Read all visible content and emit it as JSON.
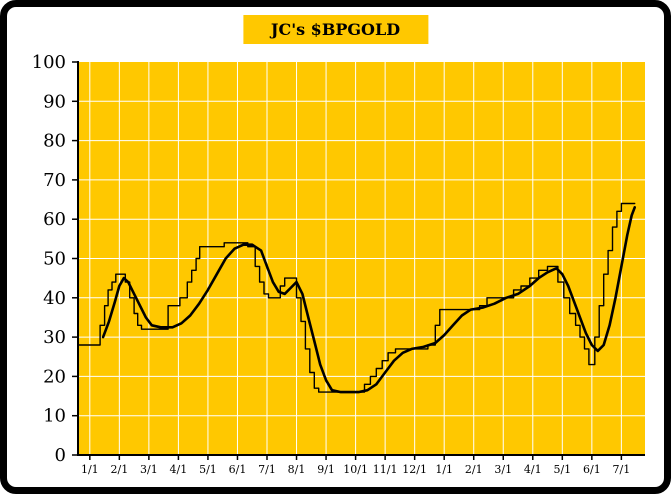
{
  "title": "JC's $BPGOLD",
  "colors": {
    "plot_bg": "#FFC800",
    "title_bg": "#FFC800",
    "grid": "#FFFFFF",
    "line": "#000000",
    "axis": "#000000",
    "frame": "#000000",
    "page_bg": "#FFFFFF"
  },
  "chart_data": {
    "type": "line",
    "title": "JC's $BPGOLD",
    "xlabel": "",
    "ylabel": "",
    "x_labels": [
      "1/1",
      "2/1",
      "3/1",
      "4/1",
      "5/1",
      "6/1",
      "7/1",
      "8/1",
      "9/1",
      "10/1",
      "11/1",
      "12/1",
      "1/1",
      "2/1",
      "3/1",
      "4/1",
      "5/1",
      "6/1",
      "7/1"
    ],
    "y_ticks": [
      0,
      10,
      20,
      30,
      40,
      50,
      60,
      70,
      80,
      90,
      100
    ],
    "ylim": [
      0,
      100
    ],
    "x_domain": [
      -0.4,
      18.8
    ],
    "grid": true,
    "legend_position": "none",
    "series": [
      {
        "name": "stepped-line",
        "style": "step",
        "width": 1.4,
        "points": [
          [
            -0.35,
            28
          ],
          [
            0.35,
            28
          ],
          [
            0.35,
            33
          ],
          [
            0.5,
            33
          ],
          [
            0.5,
            38
          ],
          [
            0.62,
            38
          ],
          [
            0.62,
            42
          ],
          [
            0.75,
            42
          ],
          [
            0.75,
            44
          ],
          [
            0.88,
            44
          ],
          [
            0.88,
            46
          ],
          [
            1.2,
            46
          ],
          [
            1.2,
            44
          ],
          [
            1.35,
            44
          ],
          [
            1.35,
            40
          ],
          [
            1.5,
            40
          ],
          [
            1.5,
            36
          ],
          [
            1.62,
            36
          ],
          [
            1.62,
            33
          ],
          [
            1.75,
            33
          ],
          [
            1.75,
            32
          ],
          [
            2.65,
            32
          ],
          [
            2.65,
            38
          ],
          [
            3.05,
            38
          ],
          [
            3.05,
            40
          ],
          [
            3.3,
            40
          ],
          [
            3.3,
            44
          ],
          [
            3.45,
            44
          ],
          [
            3.45,
            47
          ],
          [
            3.6,
            47
          ],
          [
            3.6,
            50
          ],
          [
            3.72,
            50
          ],
          [
            3.72,
            53
          ],
          [
            4.55,
            53
          ],
          [
            4.55,
            54
          ],
          [
            5.35,
            54
          ],
          [
            5.35,
            53
          ],
          [
            5.6,
            53
          ],
          [
            5.6,
            48
          ],
          [
            5.75,
            48
          ],
          [
            5.75,
            44
          ],
          [
            5.9,
            44
          ],
          [
            5.9,
            41
          ],
          [
            6.05,
            41
          ],
          [
            6.05,
            40
          ],
          [
            6.45,
            40
          ],
          [
            6.45,
            43
          ],
          [
            6.6,
            43
          ],
          [
            6.6,
            45
          ],
          [
            7.0,
            45
          ],
          [
            7.0,
            40
          ],
          [
            7.15,
            40
          ],
          [
            7.15,
            34
          ],
          [
            7.3,
            34
          ],
          [
            7.3,
            27
          ],
          [
            7.45,
            27
          ],
          [
            7.45,
            21
          ],
          [
            7.6,
            21
          ],
          [
            7.6,
            17
          ],
          [
            7.75,
            17
          ],
          [
            7.75,
            16
          ],
          [
            9.3,
            16
          ],
          [
            9.3,
            18
          ],
          [
            9.5,
            18
          ],
          [
            9.5,
            20
          ],
          [
            9.7,
            20
          ],
          [
            9.7,
            22
          ],
          [
            9.9,
            22
          ],
          [
            9.9,
            24
          ],
          [
            10.1,
            24
          ],
          [
            10.1,
            26
          ],
          [
            10.35,
            26
          ],
          [
            10.35,
            27
          ],
          [
            11.45,
            27
          ],
          [
            11.45,
            28
          ],
          [
            11.7,
            28
          ],
          [
            11.7,
            33
          ],
          [
            11.85,
            33
          ],
          [
            11.85,
            37
          ],
          [
            12.0,
            37
          ],
          [
            13.2,
            37
          ],
          [
            13.2,
            38
          ],
          [
            13.45,
            38
          ],
          [
            13.45,
            40
          ],
          [
            14.35,
            40
          ],
          [
            14.35,
            42
          ],
          [
            14.6,
            42
          ],
          [
            14.6,
            43
          ],
          [
            14.9,
            43
          ],
          [
            14.9,
            45
          ],
          [
            15.2,
            45
          ],
          [
            15.2,
            47
          ],
          [
            15.5,
            47
          ],
          [
            15.5,
            48
          ],
          [
            15.85,
            48
          ],
          [
            15.85,
            44
          ],
          [
            16.05,
            44
          ],
          [
            16.05,
            40
          ],
          [
            16.25,
            40
          ],
          [
            16.25,
            36
          ],
          [
            16.45,
            36
          ],
          [
            16.45,
            33
          ],
          [
            16.6,
            33
          ],
          [
            16.6,
            30
          ],
          [
            16.75,
            30
          ],
          [
            16.75,
            27
          ],
          [
            16.9,
            27
          ],
          [
            16.9,
            23
          ],
          [
            17.1,
            23
          ],
          [
            17.1,
            30
          ],
          [
            17.25,
            30
          ],
          [
            17.25,
            38
          ],
          [
            17.4,
            38
          ],
          [
            17.4,
            46
          ],
          [
            17.55,
            46
          ],
          [
            17.55,
            52
          ],
          [
            17.7,
            52
          ],
          [
            17.7,
            58
          ],
          [
            17.85,
            58
          ],
          [
            17.85,
            62
          ],
          [
            18.0,
            62
          ],
          [
            18.0,
            64
          ],
          [
            18.45,
            64
          ]
        ]
      },
      {
        "name": "smoothed-line",
        "style": "smooth",
        "width": 2.6,
        "points": [
          [
            0.45,
            30
          ],
          [
            0.65,
            34
          ],
          [
            0.85,
            39
          ],
          [
            1.0,
            43
          ],
          [
            1.15,
            45
          ],
          [
            1.3,
            44
          ],
          [
            1.5,
            41
          ],
          [
            1.7,
            38
          ],
          [
            1.9,
            35
          ],
          [
            2.1,
            33
          ],
          [
            2.4,
            32.5
          ],
          [
            2.8,
            32.5
          ],
          [
            3.1,
            33.5
          ],
          [
            3.4,
            35.5
          ],
          [
            3.7,
            38.5
          ],
          [
            4.0,
            42
          ],
          [
            4.3,
            46
          ],
          [
            4.6,
            50
          ],
          [
            4.9,
            52.5
          ],
          [
            5.2,
            53.5
          ],
          [
            5.5,
            53.5
          ],
          [
            5.8,
            52
          ],
          [
            6.0,
            48
          ],
          [
            6.2,
            44
          ],
          [
            6.4,
            41.5
          ],
          [
            6.6,
            41
          ],
          [
            6.8,
            42.5
          ],
          [
            7.0,
            44
          ],
          [
            7.2,
            41
          ],
          [
            7.4,
            35
          ],
          [
            7.6,
            29
          ],
          [
            7.8,
            23
          ],
          [
            8.0,
            19
          ],
          [
            8.2,
            16.5
          ],
          [
            8.5,
            16
          ],
          [
            9.1,
            16
          ],
          [
            9.4,
            16.5
          ],
          [
            9.7,
            18
          ],
          [
            10.0,
            21
          ],
          [
            10.3,
            24
          ],
          [
            10.6,
            26
          ],
          [
            10.9,
            27
          ],
          [
            11.3,
            27.5
          ],
          [
            11.7,
            28.5
          ],
          [
            12.0,
            30.5
          ],
          [
            12.3,
            33
          ],
          [
            12.6,
            35.5
          ],
          [
            12.9,
            37
          ],
          [
            13.3,
            37.5
          ],
          [
            13.7,
            38.5
          ],
          [
            14.1,
            40
          ],
          [
            14.5,
            41
          ],
          [
            14.9,
            43
          ],
          [
            15.2,
            45
          ],
          [
            15.5,
            46.5
          ],
          [
            15.8,
            47.5
          ],
          [
            16.0,
            46
          ],
          [
            16.2,
            43
          ],
          [
            16.4,
            39
          ],
          [
            16.6,
            35
          ],
          [
            16.8,
            31
          ],
          [
            17.0,
            28
          ],
          [
            17.2,
            26.5
          ],
          [
            17.4,
            28
          ],
          [
            17.6,
            33
          ],
          [
            17.8,
            40
          ],
          [
            18.0,
            48
          ],
          [
            18.2,
            56
          ],
          [
            18.35,
            61
          ],
          [
            18.45,
            63
          ]
        ]
      }
    ]
  }
}
